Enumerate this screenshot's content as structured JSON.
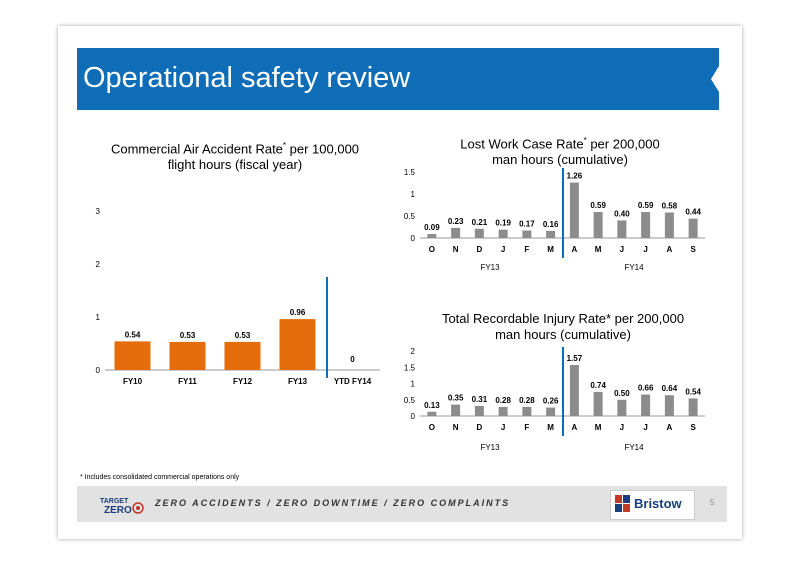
{
  "slide": {
    "title": "Operational safety review",
    "footnote": "* Includes consolidated commercial operations only",
    "tagline": "ZERO ACCIDENTS / ZERO DOWNTIME / ZERO COMPLAINTS",
    "logo_left_line1": "TARGET",
    "logo_left_line2": "ZERO",
    "logo_right": "Bristow",
    "page_number": "5"
  },
  "colors": {
    "title_bar": "#0e6db6",
    "bar_orange": "#e46c0a",
    "bar_gray": "#8c8c8c",
    "divider_blue": "#0e6db6"
  },
  "chart_data": [
    {
      "type": "bar",
      "title_line1": "Commercial Air Accident Rate",
      "title_sup": "*",
      "title_suffix": " per 100,000",
      "title_line2": "flight hours (fiscal year)",
      "categories": [
        "FY10",
        "FY11",
        "FY12",
        "FY13",
        "YTD FY14"
      ],
      "values": [
        0.54,
        0.53,
        0.53,
        0.96,
        0
      ],
      "data_labels": [
        "0.54",
        "0.53",
        "0.53",
        "0.96",
        "0"
      ],
      "ylim": [
        0,
        3
      ],
      "yticks": [
        "0",
        "1",
        "2",
        "3"
      ]
    },
    {
      "type": "bar",
      "title_line1": "Lost Work Case Rate",
      "title_sup": "*",
      "title_suffix": " per 200,000",
      "title_line2": "man hours (cumulative)",
      "categories": [
        "O",
        "N",
        "D",
        "J",
        "F",
        "M",
        "A",
        "M",
        "J",
        "J",
        "A",
        "S"
      ],
      "values": [
        0.09,
        0.23,
        0.21,
        0.19,
        0.17,
        0.16,
        1.26,
        0.59,
        0.4,
        0.59,
        0.58,
        0.44
      ],
      "data_labels": [
        "0.09",
        "0.23",
        "0.21",
        "0.19",
        "0.17",
        "0.16",
        "1.26",
        "0.59",
        "0.40",
        "0.59",
        "0.58",
        "0.44"
      ],
      "ylim": [
        0,
        1.5
      ],
      "yticks": [
        "0",
        "0.5",
        "1",
        "1.5"
      ],
      "groups": [
        "FY13",
        "FY14"
      ]
    },
    {
      "type": "bar",
      "title_line1": "Total Recordable Injury Rate* per 200,000",
      "title_sup": "",
      "title_suffix": "",
      "title_line2": "man hours (cumulative)",
      "categories": [
        "O",
        "N",
        "D",
        "J",
        "F",
        "M",
        "A",
        "M",
        "J",
        "J",
        "A",
        "S"
      ],
      "values": [
        0.13,
        0.35,
        0.31,
        0.28,
        0.28,
        0.26,
        1.57,
        0.74,
        0.5,
        0.66,
        0.64,
        0.54
      ],
      "data_labels": [
        "0.13",
        "0.35",
        "0.31",
        "0.28",
        "0.28",
        "0.26",
        "1.57",
        "0.74",
        "0.50",
        "0.66",
        "0.64",
        "0.54"
      ],
      "ylim": [
        0,
        2
      ],
      "yticks": [
        "0",
        "0.5",
        "1",
        "1.5",
        "2"
      ],
      "groups": [
        "FY13",
        "FY14"
      ]
    }
  ]
}
